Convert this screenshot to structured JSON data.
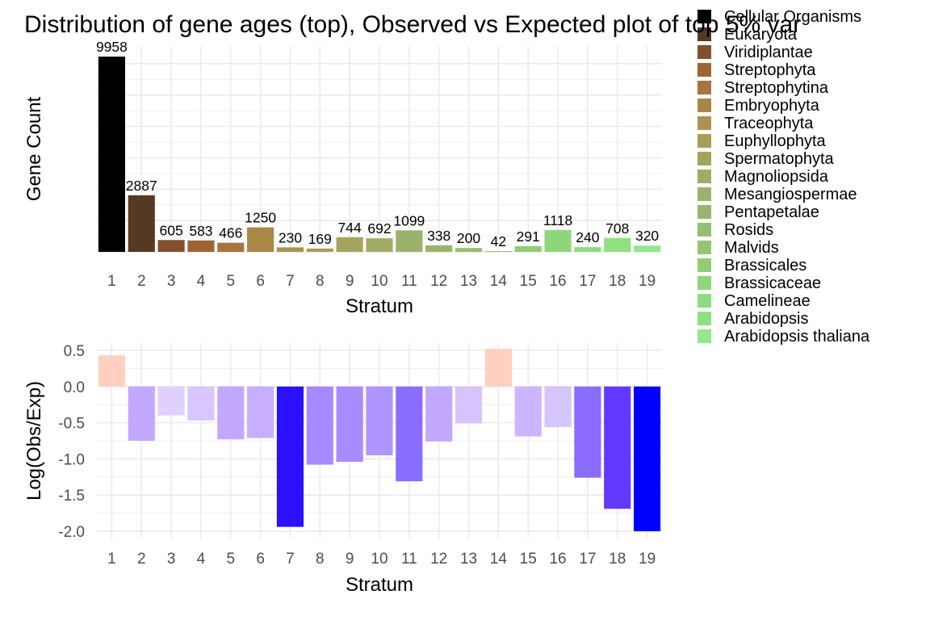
{
  "title": "Distribution of gene ages (top), Observed vs Expected plot of top 5% var",
  "chart_data": [
    {
      "type": "bar",
      "name": "gene-count",
      "xlabel": "Stratum",
      "ylabel": "Gene Count",
      "categories": [
        "1",
        "2",
        "3",
        "4",
        "5",
        "6",
        "7",
        "8",
        "9",
        "10",
        "11",
        "12",
        "13",
        "14",
        "15",
        "16",
        "17",
        "18",
        "19"
      ],
      "values": [
        9958,
        2887,
        605,
        583,
        466,
        1250,
        230,
        169,
        744,
        692,
        1099,
        338,
        200,
        42,
        291,
        1118,
        240,
        708,
        320
      ],
      "labels": [
        "9958",
        "2887",
        "605",
        "583",
        "466",
        "1250",
        "230",
        "169",
        "744",
        "692",
        "1099",
        "338",
        "200",
        "42",
        "291",
        "1118",
        "240",
        "708",
        "320"
      ],
      "ylim": [
        0,
        10500
      ],
      "grid_values": [
        0,
        1600,
        3200,
        4800,
        6400,
        8000,
        9600
      ],
      "colors": [
        "#000000",
        "#553920",
        "#83502e",
        "#9e6435",
        "#a7733f",
        "#a98748",
        "#a99352",
        "#a99d57",
        "#a5a35e",
        "#a1aa66",
        "#9ab36c",
        "#9ab56f",
        "#97bf73",
        "#93c573",
        "#91cd77",
        "#8ed67b",
        "#8edb80",
        "#8fe080",
        "#93e78d"
      ]
    },
    {
      "type": "bar",
      "name": "obs-vs-exp",
      "xlabel": "Stratum",
      "ylabel": "Log(Obs/Exp)",
      "categories": [
        "1",
        "2",
        "3",
        "4",
        "5",
        "6",
        "7",
        "8",
        "9",
        "10",
        "11",
        "12",
        "13",
        "14",
        "15",
        "16",
        "17",
        "18",
        "19"
      ],
      "values": [
        0.43,
        -0.75,
        -0.4,
        -0.47,
        -0.73,
        -0.71,
        -1.94,
        -1.08,
        -1.04,
        -0.95,
        -1.31,
        -0.76,
        -0.51,
        0.52,
        -0.69,
        -0.56,
        -1.26,
        -1.69,
        -2.0
      ],
      "ylim": [
        -2.1,
        0.6
      ],
      "yticks": [
        0.5,
        0.0,
        -0.5,
        -1.0,
        -1.5,
        -2.0
      ],
      "ytick_labels": [
        "0.5",
        "0.0",
        "-0.5",
        "-1.0",
        "-1.5",
        "-2.0"
      ],
      "colors": [
        "#ffd0c0",
        "#c3a8ff",
        "#e0d0ff",
        "#d8c6ff",
        "#c3a8ff",
        "#c7aeff",
        "#2a10ff",
        "#a68aff",
        "#a88cff",
        "#ae95ff",
        "#8a6cff",
        "#c3a8ff",
        "#d6c4ff",
        "#ffcfc0",
        "#ccb6ff",
        "#d6c4ff",
        "#8a6cff",
        "#6338ff",
        "#0000ff"
      ]
    }
  ],
  "legend": {
    "position": "right",
    "items": [
      {
        "label": "Cellular Organisms",
        "color": "#000000"
      },
      {
        "label": "Eukaryota",
        "color": "#553920"
      },
      {
        "label": "Viridiplantae",
        "color": "#83502e"
      },
      {
        "label": "Streptophyta",
        "color": "#9e6435"
      },
      {
        "label": "Streptophytina",
        "color": "#a7733f"
      },
      {
        "label": "Embryophyta",
        "color": "#a98748"
      },
      {
        "label": "Traceophyta",
        "color": "#a99352"
      },
      {
        "label": "Euphyllophyta",
        "color": "#a99d57"
      },
      {
        "label": "Spermatophyta",
        "color": "#a5a35e"
      },
      {
        "label": "Magnoliopsida",
        "color": "#a1aa66"
      },
      {
        "label": "Mesangiospermae",
        "color": "#9ab36c"
      },
      {
        "label": "Pentapetalae",
        "color": "#9ab56f"
      },
      {
        "label": "Rosids",
        "color": "#97bf73"
      },
      {
        "label": "Malvids",
        "color": "#93c573"
      },
      {
        "label": "Brassicales",
        "color": "#91cd77"
      },
      {
        "label": "Brassicaceae",
        "color": "#8ed67b"
      },
      {
        "label": "Camelineae",
        "color": "#8edb80"
      },
      {
        "label": "Arabidopsis",
        "color": "#8fe080"
      },
      {
        "label": "Arabidopsis thaliana",
        "color": "#93e78d"
      }
    ]
  }
}
